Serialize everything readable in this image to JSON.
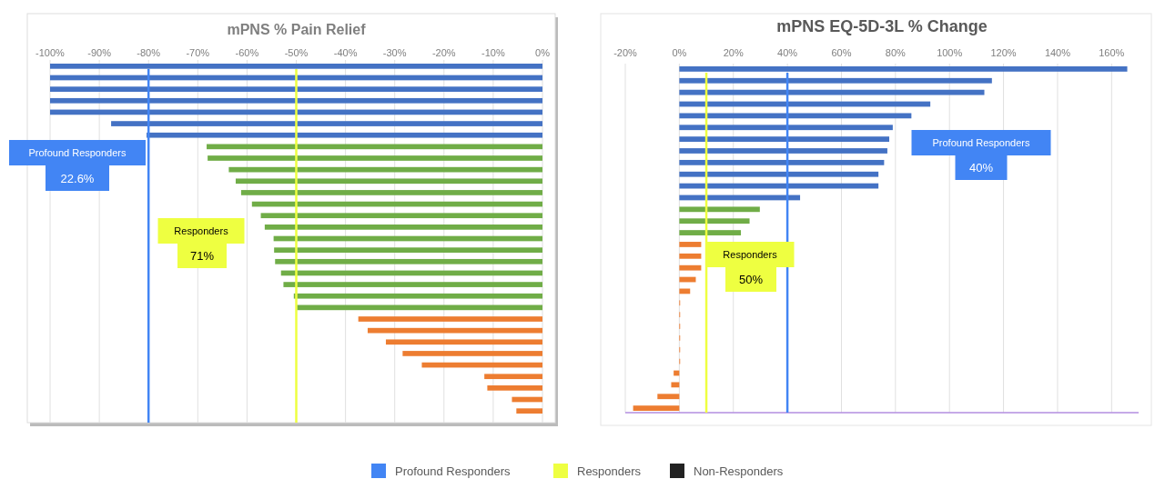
{
  "chart_data": [
    {
      "type": "bar",
      "orientation": "horizontal",
      "title": "mPNS % Pain Relief",
      "categories": [
        null,
        null,
        null,
        null,
        null,
        null,
        null,
        null,
        null,
        null,
        null,
        null,
        null,
        null,
        null,
        null,
        null,
        null,
        null,
        null,
        null,
        null,
        null,
        null,
        null,
        null,
        null,
        null,
        null,
        null,
        null
      ],
      "values": [
        -100,
        -100,
        -100,
        -100,
        -100,
        -87.6,
        -80.4,
        -68.2,
        -68,
        -63.7,
        -62.3,
        -61.2,
        -59,
        -57.2,
        -56.4,
        -54.6,
        -54.5,
        -54.3,
        -53.1,
        -52.6,
        -50.5,
        -49.9,
        -37.4,
        -35.5,
        -31.8,
        -28.4,
        -24.5,
        -11.8,
        -11.2,
        -6.2,
        -5.3
      ],
      "colors": [
        "#4472c4",
        "#4472c4",
        "#4472c4",
        "#4472c4",
        "#4472c4",
        "#4472c4",
        "#4472c4",
        "#70ad47",
        "#70ad47",
        "#70ad47",
        "#70ad47",
        "#70ad47",
        "#70ad47",
        "#70ad47",
        "#70ad47",
        "#70ad47",
        "#70ad47",
        "#70ad47",
        "#70ad47",
        "#70ad47",
        "#70ad47",
        "#70ad47",
        "#ed7d31",
        "#ed7d31",
        "#ed7d31",
        "#ed7d31",
        "#ed7d31",
        "#ed7d31",
        "#ed7d31",
        "#ed7d31",
        "#ed7d31"
      ],
      "xlim": [
        -100,
        0
      ],
      "xticks": [
        {
          "value": -100,
          "label": "-100%"
        },
        {
          "value": -90,
          "label": "-90%"
        },
        {
          "value": -80,
          "label": "-80%"
        },
        {
          "value": -70,
          "label": "-70%"
        },
        {
          "value": -60,
          "label": "-60%"
        },
        {
          "value": -50,
          "label": "-50%"
        },
        {
          "value": -40,
          "label": "-40%"
        },
        {
          "value": -30,
          "label": "-30%"
        },
        {
          "value": -20,
          "label": "-20%"
        },
        {
          "value": -10,
          "label": "-10%"
        },
        {
          "value": 0,
          "label": "0%"
        }
      ],
      "grid": "x",
      "ref_lines": [
        {
          "axis": "x",
          "value": -80,
          "color": "#4285f4"
        },
        {
          "axis": "x",
          "value": -50,
          "color": "#eeff41"
        }
      ],
      "annotations": [
        "Profound Responders",
        "22.6%",
        "Responders",
        "71%"
      ]
    },
    {
      "type": "bar",
      "orientation": "horizontal",
      "title": "mPNS EQ-5D-3L % Change",
      "categories": [
        null,
        null,
        null,
        null,
        null,
        null,
        null,
        null,
        null,
        null,
        null,
        null,
        null,
        null,
        null,
        null,
        null,
        null,
        null,
        null,
        null,
        null,
        null,
        null,
        null,
        null,
        null,
        null,
        null,
        null
      ],
      "values": [
        165.8,
        115.7,
        112.9,
        92.9,
        85.9,
        79,
        77.7,
        77,
        75.8,
        73.7,
        73.7,
        44.7,
        29.8,
        26,
        22.8,
        8.1,
        8.1,
        8.1,
        6.1,
        4,
        0.3,
        0.3,
        0.3,
        0.3,
        0.3,
        0.3,
        -2.1,
        -3,
        -8.1,
        -17.1
      ],
      "colors": [
        "#4472c4",
        "#4472c4",
        "#4472c4",
        "#4472c4",
        "#4472c4",
        "#4472c4",
        "#4472c4",
        "#4472c4",
        "#4472c4",
        "#4472c4",
        "#4472c4",
        "#4472c4",
        "#70ad47",
        "#70ad47",
        "#70ad47",
        "#ed7d31",
        "#ed7d31",
        "#ed7d31",
        "#ed7d31",
        "#ed7d31",
        "#ed7d31",
        "#ed7d31",
        "#ed7d31",
        "#ed7d31",
        "#ed7d31",
        "#ed7d31",
        "#ed7d31",
        "#ed7d31",
        "#ed7d31",
        "#ed7d31"
      ],
      "xlim": [
        -20,
        170
      ],
      "xticks": [
        {
          "value": -20,
          "label": "-20%"
        },
        {
          "value": 0,
          "label": "0%"
        },
        {
          "value": 20,
          "label": "20%"
        },
        {
          "value": 40,
          "label": "40%"
        },
        {
          "value": 60,
          "label": "60%"
        },
        {
          "value": 80,
          "label": "80%"
        },
        {
          "value": 100,
          "label": "100%"
        },
        {
          "value": 120,
          "label": "120%"
        },
        {
          "value": 140,
          "label": "140%"
        },
        {
          "value": 160,
          "label": "160%"
        }
      ],
      "grid": "x",
      "ref_lines": [
        {
          "axis": "x",
          "value": 40,
          "color": "#4285f4"
        },
        {
          "axis": "x",
          "value": 10,
          "color": "#eeff41"
        }
      ],
      "annotations": [
        "Profound Responders",
        "40%",
        "Responders",
        "50%"
      ]
    },
    {
      "type": "other",
      "categories": [
        "Profound Responders",
        "Responders",
        "Non-Responders"
      ],
      "colors": [
        "#4285f4",
        "#eeff41",
        "#222222"
      ]
    }
  ]
}
